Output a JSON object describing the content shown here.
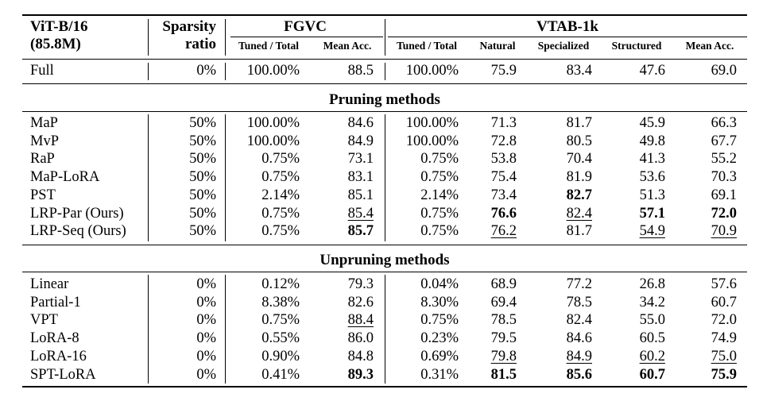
{
  "header": {
    "model": "ViT-B/16",
    "params": "(85.8M)",
    "sparsity_line1": "Sparsity",
    "sparsity_line2": "ratio",
    "fgvc": "FGVC",
    "vtab": "VTAB-1k",
    "subcols": [
      "Tuned / Total",
      "Mean Acc.",
      "Tuned / Total",
      "Natural",
      "Specialized",
      "Structured",
      "Mean Acc."
    ]
  },
  "full_row": {
    "method": "Full",
    "sparsity": "0%",
    "cells": [
      {
        "v": "100.00%"
      },
      {
        "v": "88.5"
      },
      {
        "v": "100.00%"
      },
      {
        "v": "75.9"
      },
      {
        "v": "83.4"
      },
      {
        "v": "47.6"
      },
      {
        "v": "69.0"
      }
    ]
  },
  "sections": [
    {
      "title": "Pruning methods",
      "rows": [
        {
          "method": "MaP",
          "sparsity": "50%",
          "cells": [
            {
              "v": "100.00%"
            },
            {
              "v": "84.6"
            },
            {
              "v": "100.00%"
            },
            {
              "v": "71.3"
            },
            {
              "v": "81.7"
            },
            {
              "v": "45.9"
            },
            {
              "v": "66.3"
            }
          ]
        },
        {
          "method": "MvP",
          "sparsity": "50%",
          "cells": [
            {
              "v": "100.00%"
            },
            {
              "v": "84.9"
            },
            {
              "v": "100.00%"
            },
            {
              "v": "72.8"
            },
            {
              "v": "80.5"
            },
            {
              "v": "49.8"
            },
            {
              "v": "67.7"
            }
          ]
        },
        {
          "method": "RaP",
          "sparsity": "50%",
          "cells": [
            {
              "v": "0.75%"
            },
            {
              "v": "73.1"
            },
            {
              "v": "0.75%"
            },
            {
              "v": "53.8"
            },
            {
              "v": "70.4"
            },
            {
              "v": "41.3"
            },
            {
              "v": "55.2"
            }
          ]
        },
        {
          "method": "MaP-LoRA",
          "sparsity": "50%",
          "cells": [
            {
              "v": "0.75%"
            },
            {
              "v": "83.1"
            },
            {
              "v": "0.75%"
            },
            {
              "v": "75.4"
            },
            {
              "v": "81.9"
            },
            {
              "v": "53.6"
            },
            {
              "v": "70.3"
            }
          ]
        },
        {
          "method": "PST",
          "sparsity": "50%",
          "cells": [
            {
              "v": "2.14%"
            },
            {
              "v": "85.1"
            },
            {
              "v": "2.14%"
            },
            {
              "v": "73.4"
            },
            {
              "v": "82.7",
              "b": true
            },
            {
              "v": "51.3"
            },
            {
              "v": "69.1"
            }
          ]
        },
        {
          "method": "LRP-Par (Ours)",
          "sparsity": "50%",
          "cells": [
            {
              "v": "0.75%"
            },
            {
              "v": "85.4",
              "u": true
            },
            {
              "v": "0.75%"
            },
            {
              "v": "76.6",
              "b": true
            },
            {
              "v": "82.4",
              "u": true
            },
            {
              "v": "57.1",
              "b": true
            },
            {
              "v": "72.0",
              "b": true
            }
          ]
        },
        {
          "method": "LRP-Seq (Ours)",
          "sparsity": "50%",
          "cells": [
            {
              "v": "0.75%"
            },
            {
              "v": "85.7",
              "b": true
            },
            {
              "v": "0.75%"
            },
            {
              "v": "76.2",
              "u": true
            },
            {
              "v": "81.7"
            },
            {
              "v": "54.9",
              "u": true
            },
            {
              "v": "70.9",
              "u": true
            }
          ]
        }
      ]
    },
    {
      "title": "Unpruning methods",
      "rows": [
        {
          "method": "Linear",
          "sparsity": "0%",
          "cells": [
            {
              "v": "0.12%"
            },
            {
              "v": "79.3"
            },
            {
              "v": "0.04%"
            },
            {
              "v": "68.9"
            },
            {
              "v": "77.2"
            },
            {
              "v": "26.8"
            },
            {
              "v": "57.6"
            }
          ]
        },
        {
          "method": "Partial-1",
          "sparsity": "0%",
          "cells": [
            {
              "v": "8.38%"
            },
            {
              "v": "82.6"
            },
            {
              "v": "8.30%"
            },
            {
              "v": "69.4"
            },
            {
              "v": "78.5"
            },
            {
              "v": "34.2"
            },
            {
              "v": "60.7"
            }
          ]
        },
        {
          "method": "VPT",
          "sparsity": "0%",
          "cells": [
            {
              "v": "0.75%"
            },
            {
              "v": "88.4",
              "u": true
            },
            {
              "v": "0.75%"
            },
            {
              "v": "78.5"
            },
            {
              "v": "82.4"
            },
            {
              "v": "55.0"
            },
            {
              "v": "72.0"
            }
          ]
        },
        {
          "method": "LoRA-8",
          "sparsity": "0%",
          "cells": [
            {
              "v": "0.55%"
            },
            {
              "v": "86.0"
            },
            {
              "v": "0.23%"
            },
            {
              "v": "79.5"
            },
            {
              "v": "84.6"
            },
            {
              "v": "60.5"
            },
            {
              "v": "74.9"
            }
          ]
        },
        {
          "method": "LoRA-16",
          "sparsity": "0%",
          "cells": [
            {
              "v": "0.90%"
            },
            {
              "v": "84.8"
            },
            {
              "v": "0.69%"
            },
            {
              "v": "79.8",
              "u": true
            },
            {
              "v": "84.9",
              "u": true
            },
            {
              "v": "60.2",
              "u": true
            },
            {
              "v": "75.0",
              "u": true
            }
          ]
        },
        {
          "method": "SPT-LoRA",
          "sparsity": "0%",
          "cells": [
            {
              "v": "0.41%"
            },
            {
              "v": "89.3",
              "b": true
            },
            {
              "v": "0.31%"
            },
            {
              "v": "81.5",
              "b": true
            },
            {
              "v": "85.6",
              "b": true
            },
            {
              "v": "60.7",
              "b": true
            },
            {
              "v": "75.9",
              "b": true
            }
          ]
        }
      ]
    }
  ]
}
